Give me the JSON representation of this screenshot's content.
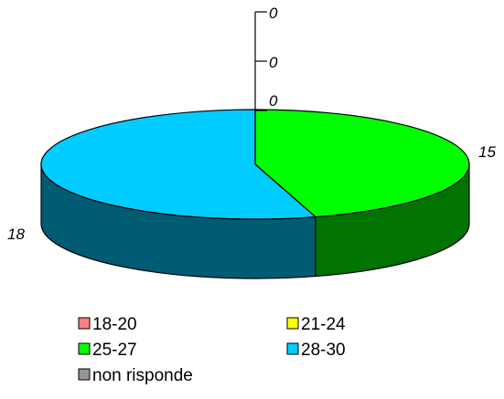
{
  "chart_data": {
    "type": "pie",
    "style": "3d",
    "categories": [
      "18-20",
      "21-24",
      "25-27",
      "28-30",
      "non risponde"
    ],
    "values": [
      0,
      0,
      15,
      18,
      0
    ],
    "colors": [
      "#ff8080",
      "#ffff00",
      "#00ff00",
      "#00ccff",
      "#969696"
    ],
    "data_labels": [
      "0",
      "0",
      "15",
      "18",
      "0"
    ],
    "legend": {
      "position": "bottom",
      "entries": [
        "18-20",
        "21-24",
        "25-27",
        "28-30",
        "non risponde"
      ]
    }
  }
}
